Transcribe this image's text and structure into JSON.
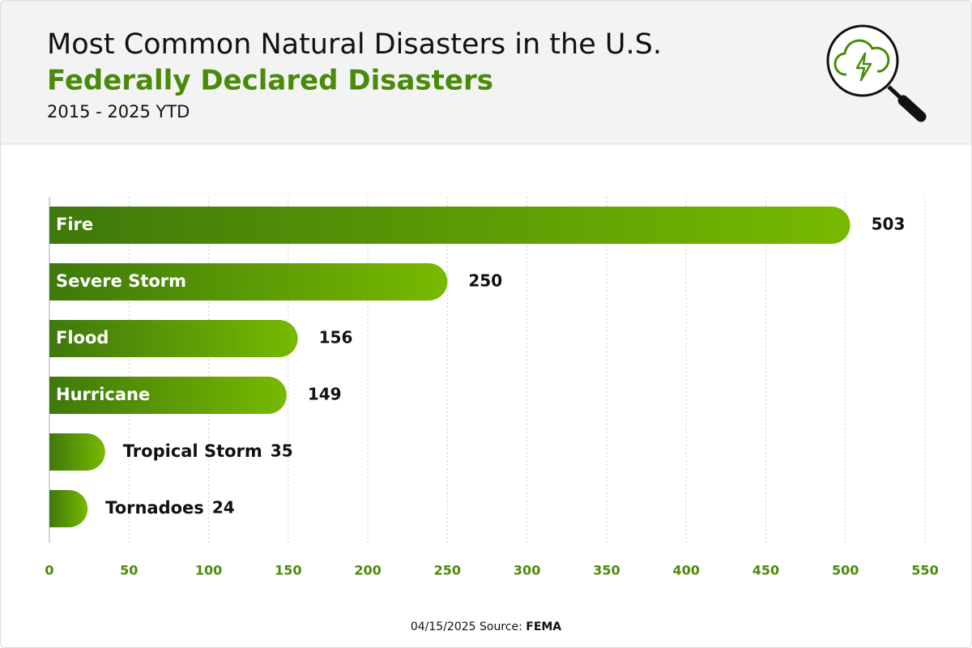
{
  "chart_data": {
    "type": "bar",
    "orientation": "horizontal",
    "title": "Most Common Natural Disasters in the U.S.",
    "subtitle": "Federally Declared Disasters",
    "period": "2015 - 2025 YTD",
    "categories": [
      "Fire",
      "Severe Storm",
      "Flood",
      "Hurricane",
      "Tropical Storm",
      "Tornadoes"
    ],
    "values": [
      503,
      250,
      156,
      149,
      35,
      24
    ],
    "gradient": [
      "#3e790b",
      "#78b900"
    ],
    "xlim": [
      0,
      550
    ],
    "xticks": [
      0,
      50,
      100,
      150,
      200,
      250,
      300,
      350,
      400,
      450,
      500,
      550
    ],
    "grid": true,
    "footnote": "04/15/2025 Source:",
    "source": "FEMA"
  }
}
